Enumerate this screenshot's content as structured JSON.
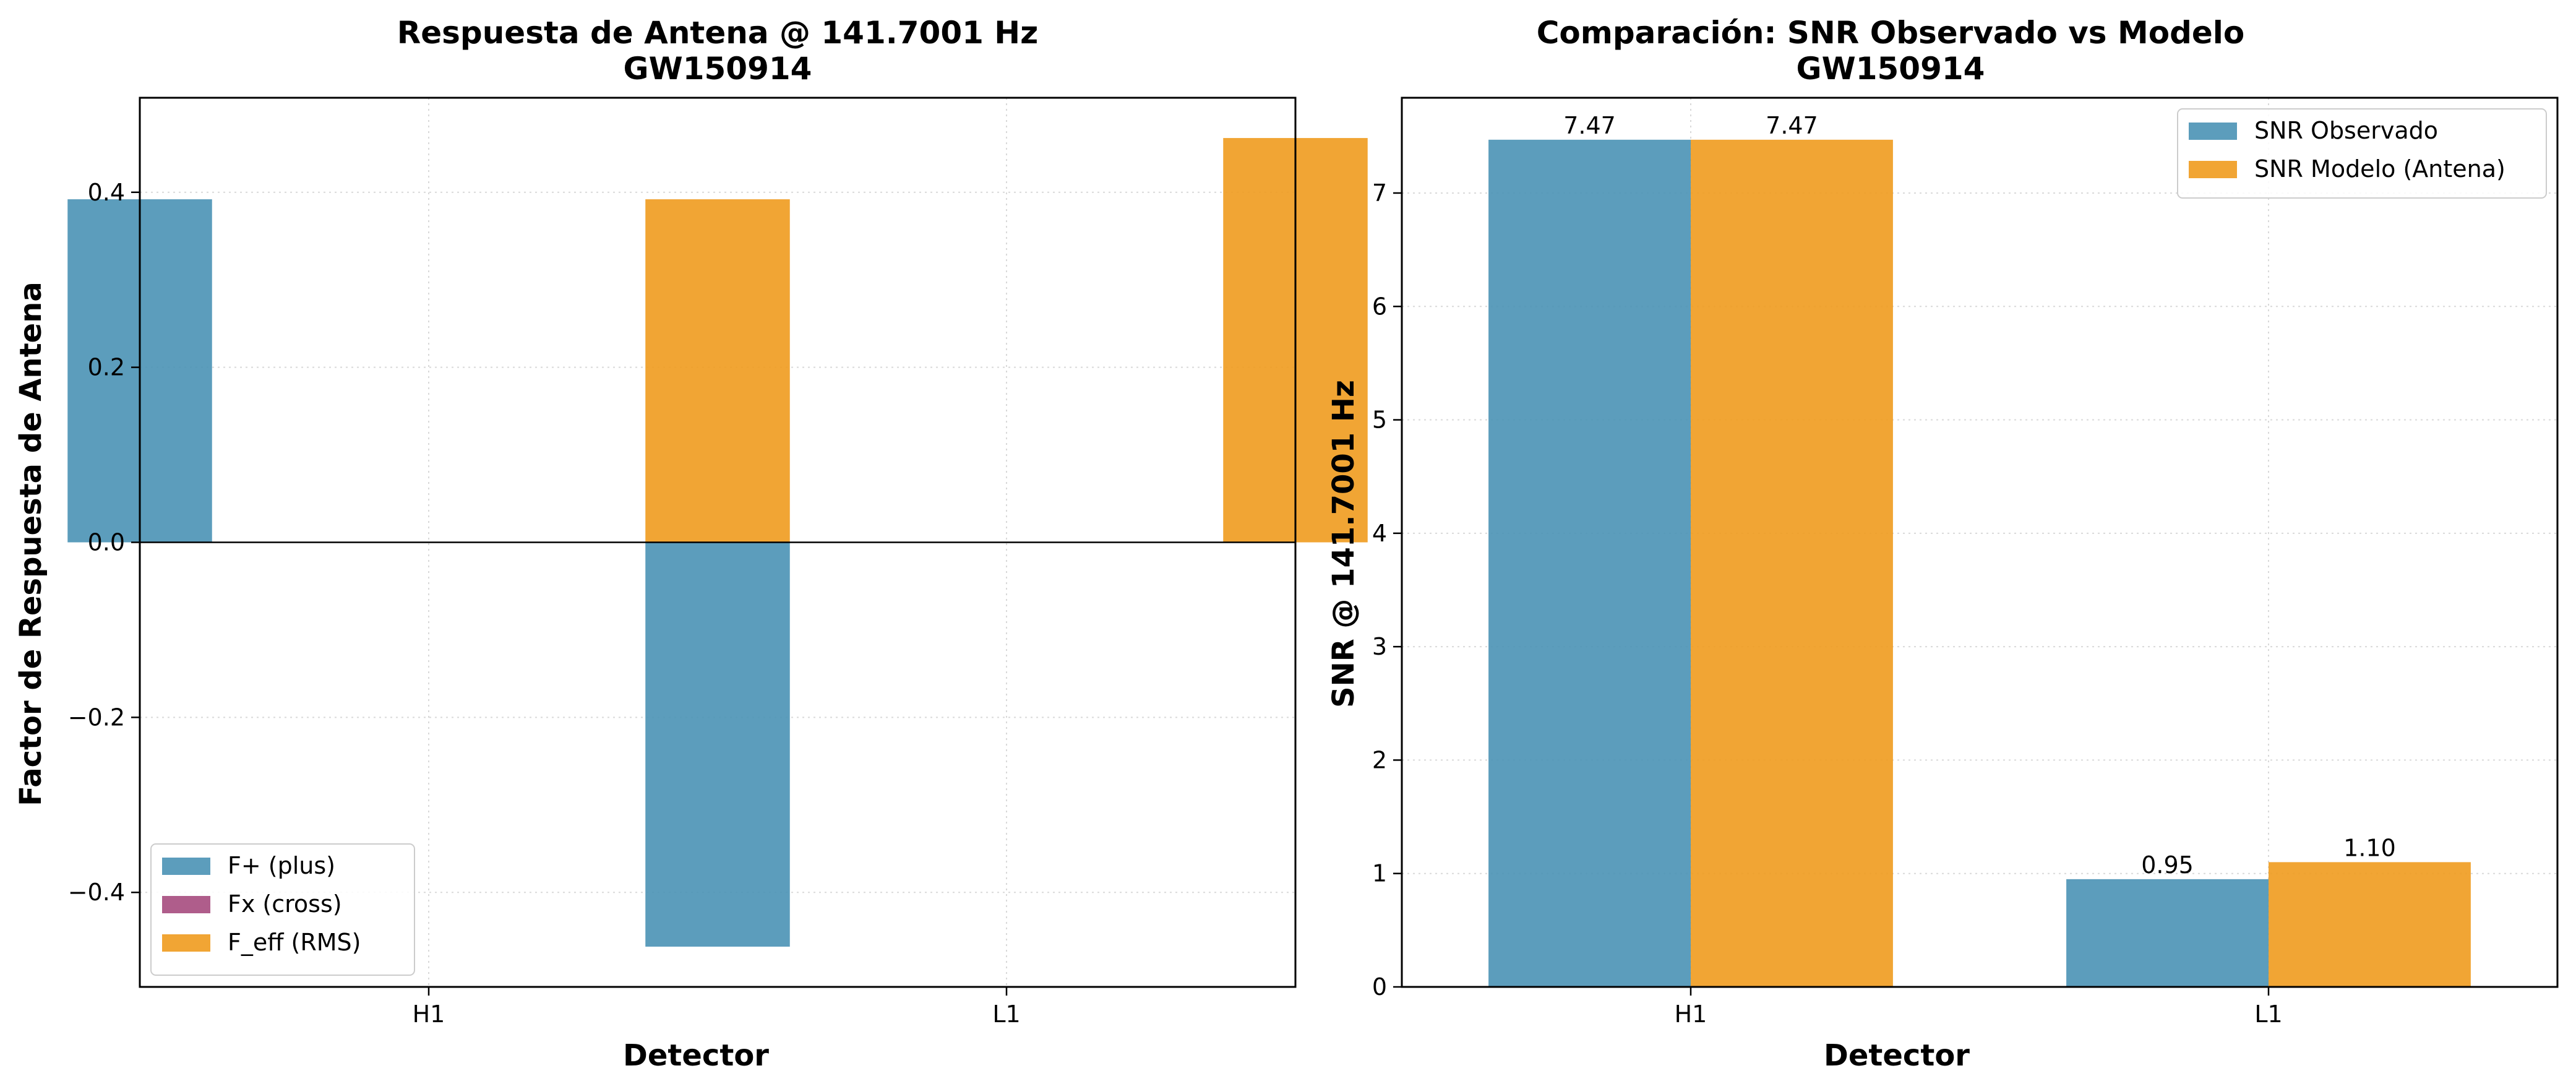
{
  "colors": {
    "plus": "#4a92b5",
    "cross": "#a64b7e",
    "eff": "#f09b1e",
    "observed": "#4a92b5",
    "model": "#f09b1e"
  },
  "chart_data": [
    {
      "type": "bar",
      "title": "Respuesta de Antena @ 141.7001 Hz",
      "subtitle": "GW150914",
      "xlabel": "Detector",
      "ylabel": "Factor de Respuesta de Antena",
      "categories": [
        "H1",
        "L1"
      ],
      "series": [
        {
          "name": "F+ (plus)",
          "values": [
            0.392,
            -0.462
          ]
        },
        {
          "name": "Fx (cross)",
          "values": [
            0.0,
            0.0
          ]
        },
        {
          "name": "F_eff (RMS)",
          "values": [
            0.392,
            0.462
          ]
        }
      ],
      "ylim": [
        -0.508,
        0.508
      ],
      "yticks": [
        -0.4,
        -0.2,
        0.0,
        0.2,
        0.4
      ],
      "ytick_labels": [
        "−0.4",
        "−0.2",
        "0.0",
        "0.2",
        "0.4"
      ],
      "grid": true,
      "zero_line": true,
      "legend": "lower-left"
    },
    {
      "type": "bar",
      "title": "Comparación: SNR Observado vs Modelo",
      "subtitle": "GW150914",
      "xlabel": "Detector",
      "ylabel": "SNR @ 141.7001 Hz",
      "categories": [
        "H1",
        "L1"
      ],
      "series": [
        {
          "name": "SNR Observado",
          "values": [
            7.47,
            0.95
          ],
          "labels": [
            "7.47",
            "0.95"
          ]
        },
        {
          "name": "SNR Modelo (Antena)",
          "values": [
            7.47,
            1.1
          ],
          "labels": [
            "7.47",
            "1.10"
          ]
        }
      ],
      "ylim": [
        0,
        7.84
      ],
      "yticks": [
        0,
        1,
        2,
        3,
        4,
        5,
        6,
        7
      ],
      "ytick_labels": [
        "0",
        "1",
        "2",
        "3",
        "4",
        "5",
        "6",
        "7"
      ],
      "grid": true,
      "legend": "top-right"
    }
  ]
}
